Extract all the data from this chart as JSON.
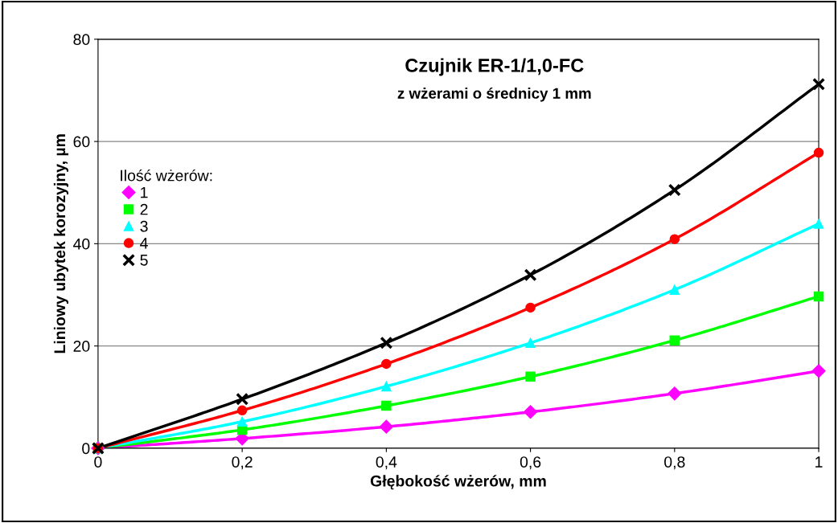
{
  "chart_data": {
    "type": "line",
    "title": "Czujnik ER-1/1,0-FC",
    "subtitle": "z wżerami o średnicy 1 mm",
    "xlabel": "Głębokość wżerów, mm",
    "ylabel": "Liniowy ubytek korozyjny, µm",
    "legend_title": "Ilość wżerów:",
    "x": [
      0,
      0.2,
      0.4,
      0.6,
      0.8,
      1
    ],
    "series": [
      {
        "name": "1",
        "color": "#ff00ff",
        "marker": "diamond",
        "values": [
          0,
          1.9,
          4.2,
          7.1,
          10.7,
          15.1
        ]
      },
      {
        "name": "2",
        "color": "#00ff00",
        "marker": "square",
        "values": [
          0,
          3.6,
          8.3,
          14.0,
          21.1,
          29.7
        ]
      },
      {
        "name": "3",
        "color": "#00ffff",
        "marker": "triangle",
        "values": [
          0,
          5.2,
          12.1,
          20.6,
          31.0,
          43.9
        ]
      },
      {
        "name": "4",
        "color": "#ff0000",
        "marker": "circle",
        "values": [
          0,
          7.4,
          16.5,
          27.5,
          40.9,
          57.8
        ]
      },
      {
        "name": "5",
        "color": "#000000",
        "marker": "cross",
        "values": [
          0,
          9.6,
          20.6,
          33.9,
          50.5,
          71.2
        ]
      }
    ],
    "xlim": [
      0,
      1
    ],
    "ylim": [
      0,
      80
    ],
    "xticks": [
      0,
      {
        "value": 0.2,
        "label": "0,2"
      },
      {
        "value": 0.4,
        "label": "0,4"
      },
      {
        "value": 0.6,
        "label": "0,6"
      },
      {
        "value": 0.8,
        "label": "0,8"
      },
      1
    ],
    "yticks": [
      0,
      20,
      40,
      60,
      80
    ],
    "grid": "y",
    "legend": "left",
    "line_style": "solid"
  }
}
